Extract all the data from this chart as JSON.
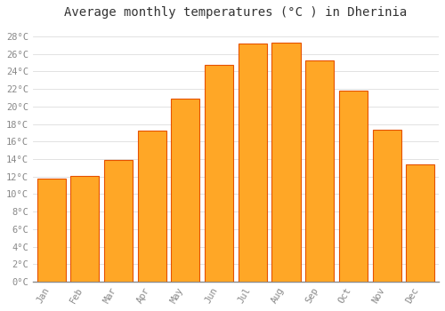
{
  "title": "Average monthly temperatures (°C ) in Dherinia",
  "months": [
    "Jan",
    "Feb",
    "Mar",
    "Apr",
    "May",
    "Jun",
    "Jul",
    "Aug",
    "Sep",
    "Oct",
    "Nov",
    "Dec"
  ],
  "values": [
    11.8,
    12.1,
    13.9,
    17.2,
    20.9,
    24.8,
    27.2,
    27.3,
    25.3,
    21.8,
    17.3,
    13.4
  ],
  "bar_color": "#FFA726",
  "bar_edge_color": "#E65100",
  "background_color": "#FFFFFF",
  "grid_color": "#DDDDDD",
  "yticks": [
    0,
    2,
    4,
    6,
    8,
    10,
    12,
    14,
    16,
    18,
    20,
    22,
    24,
    26,
    28
  ],
  "ylim": [
    0,
    29.5
  ],
  "title_fontsize": 10,
  "tick_fontsize": 7.5,
  "font_family": "monospace"
}
